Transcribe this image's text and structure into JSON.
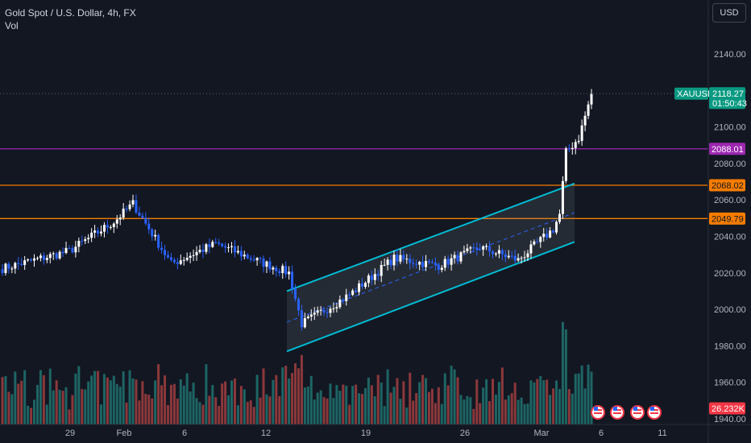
{
  "header": {
    "title": "Gold Spot / U.S. Dollar, 4h, FX",
    "indicator": "Vol",
    "currency_button": "USD"
  },
  "colors": {
    "background": "#131722",
    "bull": "#ffffff",
    "bear": "#2962ff",
    "vol_bull": "#26a69a",
    "vol_bear": "#ef5350",
    "channel": "#00bcd4",
    "level_purple": "#9c27b0",
    "level_orange": "#f57c00",
    "price_tag": "#089981"
  },
  "chart_data": {
    "type": "candlestick",
    "symbol": "XAUUSD",
    "timeframe": "4h",
    "ylim": [
      1940,
      2150
    ],
    "y_ticks": [
      "2140.00",
      "2120.00",
      "2100.00",
      "2080.00",
      "2060.00",
      "2040.00",
      "2020.00",
      "2000.00",
      "1980.00",
      "1960.00",
      "1940.00"
    ],
    "x_ticks": [
      "29",
      "Feb",
      "6",
      "12",
      "19",
      "26",
      "Mar",
      "6",
      "11"
    ],
    "last_price": {
      "label": "XAUUSD",
      "value": "2118.27",
      "countdown": "01:50:43"
    },
    "volume_label": "26.232K",
    "levels": [
      {
        "name": "purple-level",
        "value": 2088.01,
        "label": "2088.01",
        "color": "#9c27b0"
      },
      {
        "name": "orange-level-upper",
        "value": 2068.02,
        "label": "2068.02",
        "color": "#f57c00"
      },
      {
        "name": "orange-level-lower",
        "value": 2049.79,
        "label": "2049.79",
        "color": "#f57c00"
      }
    ],
    "channel": {
      "description": "ascending parallel channel",
      "upper": [
        [
          "Feb 13",
          2010
        ],
        [
          "Mar 5",
          2069
        ]
      ],
      "lower": [
        [
          "Feb 13",
          1977
        ],
        [
          "Mar 5",
          2037
        ]
      ],
      "mid": [
        [
          "Feb 13",
          1993
        ],
        [
          "Mar 5",
          2053
        ]
      ]
    },
    "segments": [
      {
        "from": 2022,
        "to": 2032,
        "bars": 22
      },
      {
        "from": 2032,
        "to": 2048,
        "bars": 14
      },
      {
        "from": 2048,
        "to": 2058,
        "bars": 6
      },
      {
        "from": 2058,
        "to": 2025,
        "bars": 12
      },
      {
        "from": 2025,
        "to": 2036,
        "bars": 14
      },
      {
        "from": 2036,
        "to": 2026,
        "bars": 14
      },
      {
        "from": 2026,
        "to": 2020,
        "bars": 9
      },
      {
        "from": 2020,
        "to": 1992,
        "bars": 4
      },
      {
        "from": 1992,
        "to": 2008,
        "bars": 15
      },
      {
        "from": 2008,
        "to": 2028,
        "bars": 14
      },
      {
        "from": 2028,
        "to": 2024,
        "bars": 14
      },
      {
        "from": 2024,
        "to": 2034,
        "bars": 13
      },
      {
        "from": 2034,
        "to": 2027,
        "bars": 12
      },
      {
        "from": 2027,
        "to": 2044,
        "bars": 11
      },
      {
        "from": 2044,
        "to": 2052,
        "bars": 2
      },
      {
        "from": 2052,
        "to": 2086,
        "bars": 2
      },
      {
        "from": 2086,
        "to": 2094,
        "bars": 4
      },
      {
        "from": 2094,
        "to": 2118,
        "bars": 4
      }
    ]
  }
}
